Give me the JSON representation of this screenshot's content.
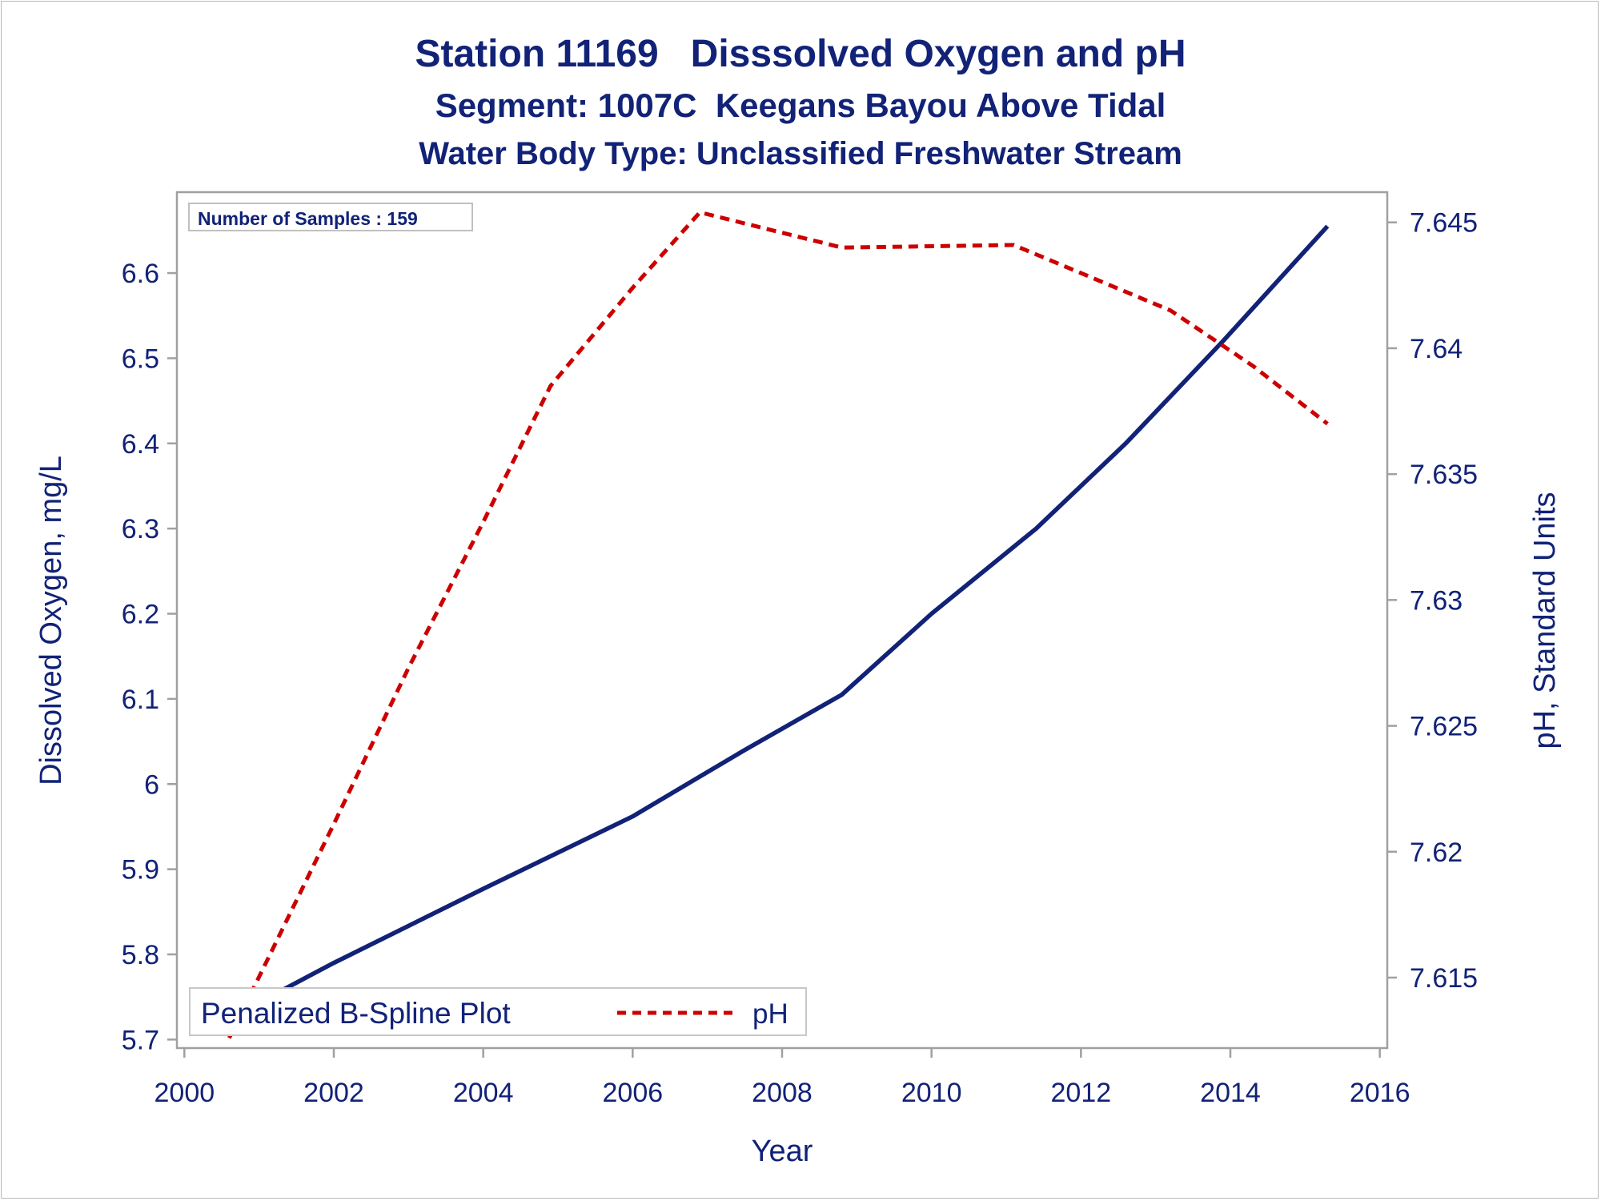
{
  "titles": {
    "line1": "Station 11169   Disssolved Oxygen and pH",
    "line2": "Segment: 1007C  Keegans Bayou Above Tidal",
    "line3": "Water Body Type: Unclassified Freshwater Stream"
  },
  "inset": {
    "samples_label": "Number of Samples : 159"
  },
  "legend": {
    "spline_label": "Penalized B-Spline Plot",
    "ph_label": "pH"
  },
  "colors": {
    "text": "#112277",
    "do_line": "#112277",
    "ph_line": "#cc0000",
    "frame": "#a0a0a0"
  },
  "chart_data": {
    "type": "line",
    "title": "Station 11169   Disssolved Oxygen and pH",
    "xlabel": "Year",
    "ylabel": "Dissolved Oxygen, mg/L",
    "y2label": "pH, Standard Units",
    "xlim": [
      1999.9,
      2016.1
    ],
    "ylim": [
      5.69,
      6.695
    ],
    "y2lim": [
      7.6122,
      7.6462
    ],
    "xticks": [
      2000,
      2002,
      2004,
      2006,
      2008,
      2010,
      2012,
      2014,
      2016
    ],
    "yticks": [
      5.7,
      5.8,
      5.9,
      6.0,
      6.1,
      6.2,
      6.3,
      6.4,
      6.5,
      6.6
    ],
    "ytick_labels": [
      "5.7",
      "5.8",
      "5.9",
      "6",
      "6.1",
      "6.2",
      "6.3",
      "6.4",
      "6.5",
      "6.6"
    ],
    "y2ticks": [
      7.615,
      7.62,
      7.625,
      7.63,
      7.635,
      7.64,
      7.645
    ],
    "y2tick_labels": [
      "7.615",
      "7.62",
      "7.625",
      "7.63",
      "7.635",
      "7.64",
      "7.645"
    ],
    "grid": false,
    "legend_position": "bottom-left",
    "series": [
      {
        "axis": "left",
        "style": "solid",
        "color": "#112277",
        "points": [
          [
            2000.6,
            5.725
          ],
          [
            2002.0,
            5.79
          ],
          [
            2004.0,
            5.877
          ],
          [
            2006.0,
            5.962
          ],
          [
            2007.5,
            6.04
          ],
          [
            2008.8,
            6.105
          ],
          [
            2010.0,
            6.2
          ],
          [
            2011.4,
            6.3
          ],
          [
            2012.6,
            6.4
          ],
          [
            2013.9,
            6.52
          ],
          [
            2015.3,
            6.655
          ]
        ]
      },
      {
        "name": "pH",
        "axis": "right",
        "style": "dashed",
        "color": "#cc0000",
        "points": [
          [
            2000.6,
            7.6126
          ],
          [
            2002.0,
            7.6211
          ],
          [
            2003.0,
            7.6273
          ],
          [
            2004.0,
            7.6331
          ],
          [
            2004.9,
            7.6385
          ],
          [
            2006.0,
            7.6424
          ],
          [
            2006.9,
            7.6454
          ],
          [
            2008.8,
            7.644
          ],
          [
            2011.1,
            7.6441
          ],
          [
            2013.2,
            7.6415
          ],
          [
            2014.3,
            7.6393
          ],
          [
            2015.3,
            7.637
          ]
        ]
      }
    ]
  }
}
